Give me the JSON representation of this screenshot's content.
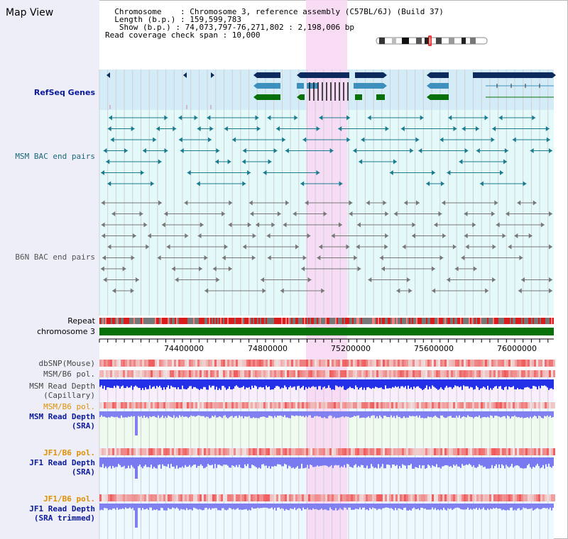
{
  "header": {
    "title": "Map View",
    "info": [
      "  Chromosome    : Chromosome 3, reference assembly (C57BL/6J) (Build 37)",
      "  Length (b.p.) : 159,599,783",
      "   Show (b.p.) : 74,073,797-76,271,802 : 2,198,006 bp",
      "Read coverage check span : 10,000"
    ]
  },
  "tracks": {
    "refseq": "RefSeq Genes",
    "msm_bac": "MSM BAC end pairs",
    "b6n_bac": "B6N BAC end pairs",
    "repeat": "Repeat",
    "chromosome": "chromosome 3",
    "dbsnp": "dbSNP(Mouse)",
    "msm_b6_pol": "MSM/B6 pol.",
    "msm_depth_cap_1": "MSM Read Depth",
    "msm_depth_cap_2": "(Capillary)",
    "msm_b6_pol_2": "MSM/B6 pol.",
    "msm_depth_sra_1": "MSM Read Depth",
    "msm_depth_sra_2": "(SRA)",
    "jf1_pol_1": "JF1/B6 pol.",
    "jf1_depth_sra_1": "JF1 Read Depth",
    "jf1_depth_sra_2": "(SRA)",
    "jf1_pol_2": "JF1/B6 pol.",
    "jf1_depth_trim_1": "JF1 Read Depth",
    "jf1_depth_trim_2": "(SRA trimmed)"
  },
  "axis": {
    "ticks": [
      "74400000",
      "74800000",
      "75200000",
      "75600000",
      "76000000"
    ]
  },
  "colors": {
    "refseq_bg": "#d4ecf8",
    "bac_bg": "#e4fafa",
    "highlight": "#f7d8f3",
    "gene_dark": "#0c2a5c",
    "gene_mid": "#3d8fbd",
    "gene_green": "#087008",
    "msm_bac": "#1a7b8e",
    "b6n_bac": "#777777",
    "chromosome": "#087008",
    "depth_msm_cap": "#2430e8",
    "depth_sra": "#8080f0",
    "label_navy": "#0a1a9c",
    "label_teal": "#1a6878",
    "label_orange": "#e09000"
  }
}
